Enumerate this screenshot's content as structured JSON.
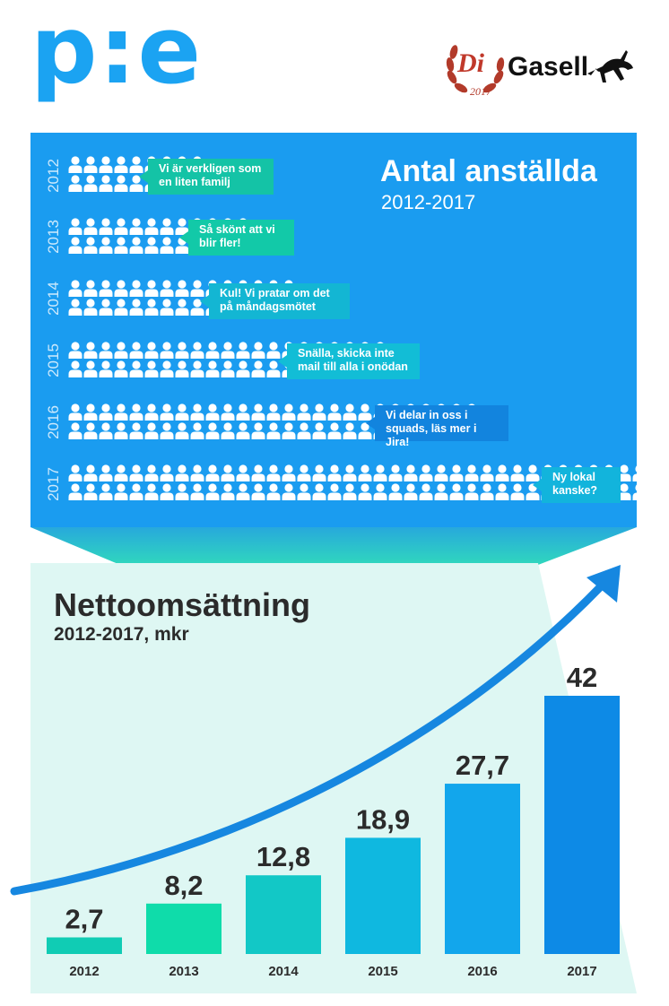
{
  "logo": {
    "text": "p:e"
  },
  "badge": {
    "brand": "Di",
    "name": "Gasell",
    "year": "2017"
  },
  "colors": {
    "brand_blue": "#1ba3f2",
    "panel_blue": "#1a9cf0",
    "mint_bg": "#def7f3"
  },
  "employees": {
    "title": "Antal anställda",
    "subtitle": "2012-2017",
    "rows": [
      {
        "year": "2012",
        "count": 17,
        "comment": "Vi är verkligen som en liten familj"
      },
      {
        "year": "2013",
        "count": 24,
        "comment": "Så skönt att vi blir fler!"
      },
      {
        "year": "2014",
        "count": 30,
        "comment": "Kul! Vi pratar om det på måndagsmötet"
      },
      {
        "year": "2015",
        "count": 42,
        "comment": "Snälla, skicka inte mail till alla i onödan"
      },
      {
        "year": "2016",
        "count": 54,
        "comment": "Vi delar in oss i squads, läs mer i Jira!"
      },
      {
        "year": "2017",
        "count": 76,
        "comment": "Ny lokal kanske?"
      }
    ]
  },
  "chart_data": {
    "type": "bar",
    "title": "Nettoomsättning",
    "subtitle": "2012-2017, mkr",
    "categories": [
      "2012",
      "2013",
      "2014",
      "2015",
      "2016",
      "2017"
    ],
    "values": [
      2.7,
      8.2,
      12.8,
      18.9,
      27.7,
      42
    ],
    "value_labels": [
      "2,7",
      "8,2",
      "12,8",
      "18,9",
      "27,7",
      "42"
    ],
    "bar_colors": [
      "#10ccb4",
      "#0fdcaa",
      "#12c8c6",
      "#0fb8e0",
      "#12a6ec",
      "#0d8ae6"
    ],
    "ylim": [
      0,
      42
    ],
    "grid": false,
    "legend": "none"
  }
}
